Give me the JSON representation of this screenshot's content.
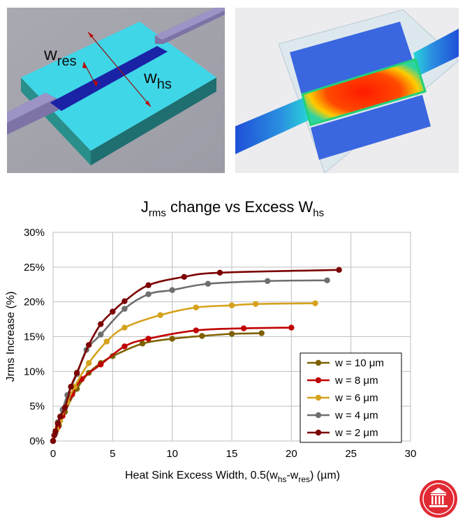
{
  "renders": {
    "left": {
      "label_res_main": "w",
      "label_res_sub": "res",
      "label_hs_main": "w",
      "label_hs_sub": "hs"
    }
  },
  "chart_data": {
    "type": "line",
    "title": {
      "main": "J",
      "sub1": "rms",
      "mid": " change vs Excess W",
      "sub2": "hs"
    },
    "xlabel": {
      "pre": "Heat Sink Excess Width, 0.5(w",
      "sub1": "hs",
      "mid": "-w",
      "sub2": "res",
      "post": ") (µm)"
    },
    "ylabel": "Jrms Increase (%)",
    "xlim": [
      0,
      30
    ],
    "ylim": [
      0,
      30
    ],
    "x_ticks": [
      "0",
      "5",
      "10",
      "15",
      "20",
      "25",
      "30"
    ],
    "y_ticks": [
      "0%",
      "5%",
      "10%",
      "15%",
      "20%",
      "25%",
      "30%"
    ],
    "grid": true,
    "legend_position": "bottom-right",
    "series": [
      {
        "name": "w = 10 μm",
        "color": "#7f6000",
        "x": [
          0,
          0.5,
          1,
          2,
          3,
          4,
          5,
          7.5,
          10,
          12.5,
          15,
          17.5
        ],
        "y": [
          0,
          2.2,
          4.2,
          7.5,
          9.8,
          11.2,
          12.2,
          14.0,
          14.7,
          15.1,
          15.4,
          15.5
        ]
      },
      {
        "name": "w = 8 μm",
        "color": "#c00000",
        "x": [
          0,
          0.4,
          0.8,
          1.6,
          2.4,
          4,
          6,
          8,
          12,
          16,
          20
        ],
        "y": [
          0,
          2.0,
          3.6,
          6.7,
          8.9,
          11.0,
          13.6,
          14.7,
          15.9,
          16.2,
          16.3
        ]
      },
      {
        "name": "w = 6 μm",
        "color": "#d6a21c",
        "x": [
          0,
          0.3,
          0.6,
          1.2,
          1.8,
          3,
          4.5,
          6,
          9,
          12,
          15,
          17,
          22
        ],
        "y": [
          0,
          1.6,
          2.9,
          5.6,
          7.8,
          11.2,
          14.3,
          16.3,
          18.1,
          19.2,
          19.5,
          19.7,
          19.8
        ]
      },
      {
        "name": "w = 4 μm",
        "color": "#6e6e6e",
        "x": [
          0,
          0.2,
          0.4,
          0.8,
          1.2,
          2,
          2.8,
          4,
          6,
          8,
          10,
          13,
          18,
          23
        ],
        "y": [
          0,
          1.1,
          2.7,
          4.5,
          6.6,
          9.6,
          13.1,
          15.3,
          19.0,
          21.1,
          21.7,
          22.6,
          23.0,
          23.1
        ]
      },
      {
        "name": "w = 2 μm",
        "color": "#7b0000",
        "x": [
          0,
          0.1,
          0.2,
          0.4,
          0.6,
          1,
          1.5,
          2,
          3,
          4,
          5,
          6,
          8,
          11,
          14,
          24
        ],
        "y": [
          0,
          0.8,
          1.4,
          2.5,
          3.5,
          4.8,
          7.8,
          9.8,
          13.8,
          16.8,
          18.6,
          20.1,
          22.4,
          23.6,
          24.2,
          24.6
        ]
      }
    ]
  },
  "logo": {
    "name": "university-seal"
  }
}
